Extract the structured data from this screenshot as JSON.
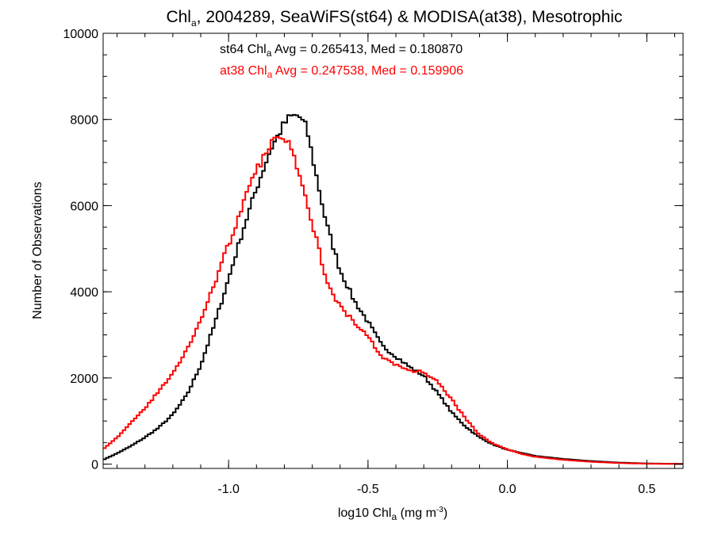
{
  "chart_data": {
    "type": "line",
    "step": true,
    "title": {
      "pre": "Chl",
      "sub": "a",
      "post": ", 2004289, SeaWiFS(st64) & MODISA(at38), Mesotrophic"
    },
    "xlabel": {
      "pre": "log10 Chl",
      "sub": "a",
      "mid": " (mg m",
      "sup": "-3",
      "post": ")"
    },
    "ylabel": "Number of Observations",
    "xlim": [
      -1.45,
      0.63
    ],
    "ylim": [
      -100,
      10000
    ],
    "xticks": [
      -1.0,
      -0.5,
      0.0,
      0.5
    ],
    "xtick_labels": [
      "-1.0",
      "-0.5",
      "0.0",
      "0.5"
    ],
    "yticks": [
      0,
      2000,
      4000,
      6000,
      8000,
      10000
    ],
    "ytick_labels": [
      "0",
      "2000",
      "4000",
      "6000",
      "8000",
      "10000"
    ],
    "x_minor_step": 0.1,
    "y_minor_step": 500,
    "grid": false,
    "annotations": [
      {
        "pre": "st64 Chl",
        "sub": "a",
        "post": " Avg = 0.265413, Med = 0.180870",
        "color": "#000000"
      },
      {
        "pre": "at38 Chl",
        "sub": "a",
        "post": " Avg = 0.247538, Med = 0.159906",
        "color": "#ff0000"
      }
    ],
    "series": [
      {
        "color": "#000000",
        "x": [
          -1.45,
          -1.4,
          -1.35,
          -1.3,
          -1.25,
          -1.2,
          -1.15,
          -1.1,
          -1.05,
          -1.0,
          -0.95,
          -0.9,
          -0.85,
          -0.8,
          -0.78,
          -0.75,
          -0.72,
          -0.7,
          -0.65,
          -0.6,
          -0.55,
          -0.5,
          -0.45,
          -0.4,
          -0.35,
          -0.3,
          -0.25,
          -0.2,
          -0.15,
          -0.1,
          -0.05,
          0.0,
          0.05,
          0.1,
          0.2,
          0.3,
          0.4,
          0.5,
          0.63
        ],
        "y": [
          100,
          250,
          420,
          620,
          850,
          1150,
          1600,
          2300,
          3250,
          4300,
          5400,
          6400,
          7300,
          7900,
          8050,
          8100,
          7800,
          7150,
          5600,
          4500,
          3800,
          3300,
          2750,
          2500,
          2250,
          2050,
          1650,
          1200,
          870,
          620,
          450,
          330,
          260,
          190,
          120,
          70,
          35,
          15,
          5
        ]
      },
      {
        "color": "#ff0000",
        "x": [
          -1.45,
          -1.4,
          -1.35,
          -1.3,
          -1.25,
          -1.2,
          -1.15,
          -1.1,
          -1.05,
          -1.0,
          -0.95,
          -0.9,
          -0.85,
          -0.82,
          -0.8,
          -0.78,
          -0.76,
          -0.74,
          -0.7,
          -0.65,
          -0.6,
          -0.55,
          -0.5,
          -0.45,
          -0.4,
          -0.35,
          -0.3,
          -0.25,
          -0.2,
          -0.15,
          -0.1,
          -0.05,
          0.0,
          0.05,
          0.1,
          0.2,
          0.3,
          0.4,
          0.5,
          0.63
        ],
        "y": [
          350,
          620,
          950,
          1300,
          1700,
          2100,
          2650,
          3350,
          4200,
          5100,
          6000,
          6800,
          7400,
          7700,
          7600,
          7400,
          7000,
          6700,
          5600,
          4300,
          3650,
          3300,
          2950,
          2500,
          2300,
          2150,
          2150,
          1900,
          1500,
          1050,
          680,
          470,
          340,
          240,
          170,
          100,
          55,
          25,
          10,
          3
        ]
      }
    ]
  }
}
